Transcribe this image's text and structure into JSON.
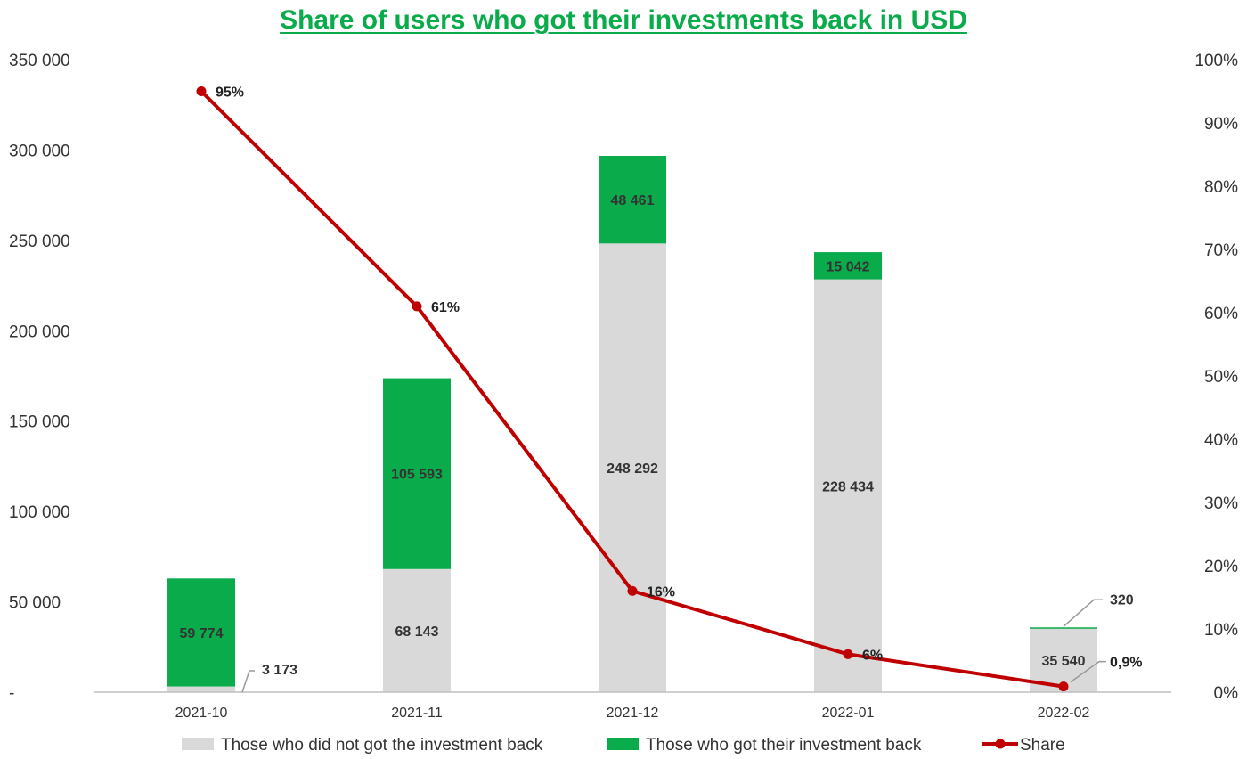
{
  "chart_data": {
    "type": "bar",
    "stacked": true,
    "title": "Share of users who got their investments back in USD",
    "categories": [
      "2021-10",
      "2021-11",
      "2021-12",
      "2022-01",
      "2022-02"
    ],
    "series": [
      {
        "name": "Those who did not got the investment back",
        "values": [
          3173,
          68143,
          248292,
          228434,
          35540
        ],
        "labels": [
          "3 173",
          "68 143",
          "248 292",
          "228 434",
          "35 540"
        ],
        "color": "#d9d9d9"
      },
      {
        "name": "Those who got their investment back",
        "values": [
          59774,
          105593,
          48461,
          15042,
          320
        ],
        "labels": [
          "59 774",
          "105 593",
          "48 461",
          "15 042",
          "320"
        ],
        "color": "#0aab4b"
      }
    ],
    "line_series": {
      "name": "Share",
      "values": [
        95,
        61,
        16,
        6,
        0.9
      ],
      "labels": [
        "95%",
        "61%",
        "16%",
        "6%",
        "0,9%"
      ],
      "color": "#c00000",
      "axis": "right"
    },
    "y_left": {
      "ylim": [
        0,
        350000
      ],
      "ticks": [
        0,
        50000,
        100000,
        150000,
        200000,
        250000,
        300000,
        350000
      ],
      "tick_labels": [
        "-",
        "50 000",
        "100 000",
        "150 000",
        "200 000",
        "250 000",
        "300 000",
        "350 000"
      ]
    },
    "y_right": {
      "ylim": [
        0,
        100
      ],
      "ticks": [
        0,
        10,
        20,
        30,
        40,
        50,
        60,
        70,
        80,
        90,
        100
      ],
      "tick_labels": [
        "0%",
        "10%",
        "20%",
        "30%",
        "40%",
        "50%",
        "60%",
        "70%",
        "80%",
        "90%",
        "100%"
      ]
    },
    "grid": false,
    "legend_position": "bottom"
  }
}
